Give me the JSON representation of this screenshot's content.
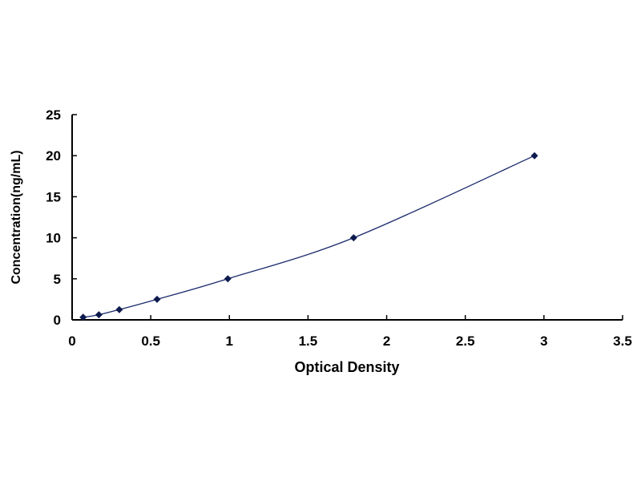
{
  "chart_data": {
    "type": "scatter",
    "title": "",
    "xlabel": "Optical Density",
    "ylabel": "Concentration(ng/mL)",
    "xlim": [
      0,
      3.5
    ],
    "ylim": [
      0,
      25
    ],
    "xticks": [
      "0",
      "0.5",
      "1",
      "1.5",
      "2",
      "2.5",
      "3",
      "3.5"
    ],
    "yticks": [
      "0",
      "5",
      "10",
      "15",
      "20",
      "25"
    ],
    "grid": false,
    "legend": "none",
    "trendline": "smooth curve",
    "series": [
      {
        "x": [
          0.07,
          0.17,
          0.3,
          0.54,
          0.99,
          1.79,
          2.94
        ],
        "y": [
          0.312,
          0.625,
          1.25,
          2.5,
          5,
          10,
          20
        ],
        "marker": "diamond",
        "color": "#0d1a4d"
      }
    ],
    "line_color": "#1a2a6c"
  }
}
